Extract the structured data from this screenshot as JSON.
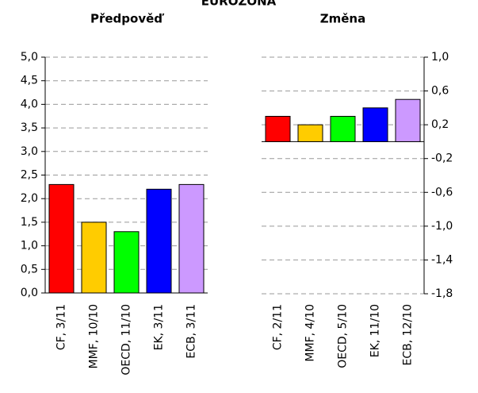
{
  "title": "EUROZÓNA",
  "chart_data": [
    {
      "type": "bar",
      "title": "Předpověď",
      "categories": [
        "CF, 3/11",
        "MMF, 10/10",
        "OECD, 11/10",
        "EK, 3/11",
        "ECB, 3/11"
      ],
      "values": [
        2.3,
        1.5,
        1.3,
        2.2,
        2.3
      ],
      "colors": [
        "#ff0000",
        "#ffcc00",
        "#00ff00",
        "#0000ff",
        "#cc99ff"
      ],
      "ylim": [
        0,
        5
      ],
      "yticks": [
        {
          "value": 0,
          "label": "0,0"
        },
        {
          "value": 0.5,
          "label": "0,5"
        },
        {
          "value": 1,
          "label": "1,0"
        },
        {
          "value": 1.5,
          "label": "1,5"
        },
        {
          "value": 2,
          "label": "2,0"
        },
        {
          "value": 2.5,
          "label": "2,5"
        },
        {
          "value": 3,
          "label": "3,0"
        },
        {
          "value": 3.5,
          "label": "3,5"
        },
        {
          "value": 4,
          "label": "4,0"
        },
        {
          "value": 4.5,
          "label": "4,5"
        },
        {
          "value": 5,
          "label": "5,0"
        }
      ],
      "axis_side": "left",
      "grid": true
    },
    {
      "type": "bar",
      "title": "Změna",
      "categories": [
        "CF, 2/11",
        "MMF, 4/10",
        "OECD, 5/10",
        "EK, 11/10",
        "ECB, 12/10"
      ],
      "values": [
        0.3,
        0.2,
        0.3,
        0.4,
        0.5
      ],
      "colors": [
        "#ff0000",
        "#ffcc00",
        "#00ff00",
        "#0000ff",
        "#cc99ff"
      ],
      "ylim": [
        -1.8,
        1.0
      ],
      "yticks": [
        {
          "value": -1.8,
          "label": "-1,8"
        },
        {
          "value": -1.4,
          "label": "-1,4"
        },
        {
          "value": -1.0,
          "label": "-1,0"
        },
        {
          "value": -0.6,
          "label": "-0,6"
        },
        {
          "value": -0.2,
          "label": "-0,2"
        },
        {
          "value": 0.2,
          "label": "0,2"
        },
        {
          "value": 0.6,
          "label": "0,6"
        },
        {
          "value": 1.0,
          "label": "1,0"
        }
      ],
      "axis_side": "right",
      "grid": true
    }
  ]
}
